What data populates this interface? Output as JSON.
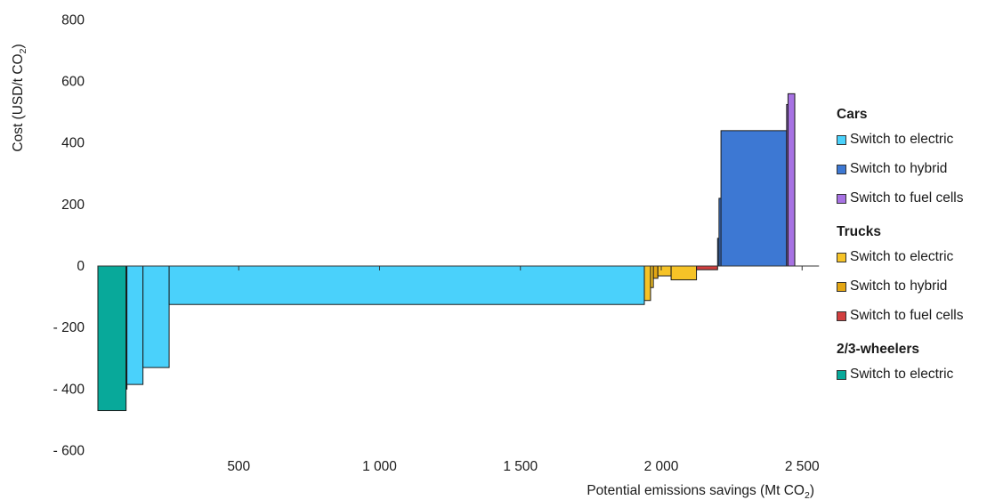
{
  "chart_data": {
    "type": "bar",
    "subtype": "marginal abatement cost curve (variable-width step bars)",
    "xlabel_main": "Potential emissions savings (Mt CO",
    "xlabel_sub": "2",
    "xlabel_end": ")",
    "ylabel_main": "Cost (USD/t CO",
    "ylabel_sub": "2",
    "ylabel_end": ")",
    "xlim": [
      0,
      2560
    ],
    "ylim": [
      -600,
      800
    ],
    "x_ticks": [
      {
        "value": 500,
        "label": "500"
      },
      {
        "value": 1000,
        "label": "1 000"
      },
      {
        "value": 1500,
        "label": "1 500"
      },
      {
        "value": 2000,
        "label": "2 000"
      },
      {
        "value": 2500,
        "label": "2 500"
      }
    ],
    "y_ticks": [
      {
        "value": 800,
        "label": "800"
      },
      {
        "value": 600,
        "label": "600"
      },
      {
        "value": 400,
        "label": "400"
      },
      {
        "value": 200,
        "label": "200"
      },
      {
        "value": 0,
        "label": "0"
      },
      {
        "value": -200,
        "label": "- 200"
      },
      {
        "value": -400,
        "label": "- 400"
      },
      {
        "value": -600,
        "label": "- 600"
      }
    ],
    "grid": false,
    "legend_position": "right",
    "legend": [
      {
        "group": "Cars",
        "items": [
          {
            "label": "Switch to electric",
            "color": "#4ad1fb"
          },
          {
            "label": "Switch to hybrid",
            "color": "#3d78d3"
          },
          {
            "label": "Switch to fuel cells",
            "color": "#a772e3"
          }
        ]
      },
      {
        "group": "Trucks",
        "items": [
          {
            "label": "Switch to electric",
            "color": "#f6c327"
          },
          {
            "label": "Switch to hybrid",
            "color": "#e3a614"
          },
          {
            "label": "Switch to fuel cells",
            "color": "#d23f3f"
          }
        ]
      },
      {
        "group": "2/3-wheelers",
        "items": [
          {
            "label": "Switch to electric",
            "color": "#08a99a"
          }
        ]
      }
    ],
    "segments": [
      {
        "series": "2/3-wheelers - Switch to electric",
        "x0": 0,
        "x1": 100,
        "value": -470,
        "color": "#08a99a"
      },
      {
        "series": "Cars - Switch to electric",
        "x0": 100,
        "x1": 103,
        "value": -400,
        "color": "#4ad1fb"
      },
      {
        "series": "Cars - Switch to electric",
        "x0": 103,
        "x1": 160,
        "value": -385,
        "color": "#4ad1fb"
      },
      {
        "series": "Cars - Switch to electric",
        "x0": 160,
        "x1": 253,
        "value": -330,
        "color": "#4ad1fb"
      },
      {
        "series": "Cars - Switch to electric",
        "x0": 253,
        "x1": 1940,
        "value": -125,
        "color": "#4ad1fb"
      },
      {
        "series": "Trucks - Switch to electric",
        "x0": 1940,
        "x1": 1962,
        "value": -112,
        "color": "#f6c327"
      },
      {
        "series": "Trucks - Switch to electric",
        "x0": 1962,
        "x1": 1972,
        "value": -70,
        "color": "#f6c327"
      },
      {
        "series": "Trucks - Switch to hybrid",
        "x0": 1972,
        "x1": 1988,
        "value": -40,
        "color": "#e3a614"
      },
      {
        "series": "Trucks - Switch to electric",
        "x0": 1988,
        "x1": 2035,
        "value": -32,
        "color": "#f6c327"
      },
      {
        "series": "Trucks - Switch to electric",
        "x0": 2035,
        "x1": 2125,
        "value": -45,
        "color": "#f6c327"
      },
      {
        "series": "Trucks - Switch to fuel cells",
        "x0": 2125,
        "x1": 2200,
        "value": -12,
        "color": "#d23f3f"
      },
      {
        "series": "Cars - Switch to hybrid",
        "x0": 2200,
        "x1": 2205,
        "value": 90,
        "color": "#3d78d3"
      },
      {
        "series": "Cars - Switch to hybrid",
        "x0": 2205,
        "x1": 2212,
        "value": 220,
        "color": "#3d78d3"
      },
      {
        "series": "Cars - Switch to hybrid",
        "x0": 2212,
        "x1": 2445,
        "value": 440,
        "color": "#3d78d3"
      },
      {
        "series": "Cars - Switch to fuel cells",
        "x0": 2445,
        "x1": 2450,
        "value": 525,
        "color": "#a772e3"
      },
      {
        "series": "Cars - Switch to fuel cells",
        "x0": 2450,
        "x1": 2474,
        "value": 560,
        "color": "#a772e3"
      }
    ]
  }
}
